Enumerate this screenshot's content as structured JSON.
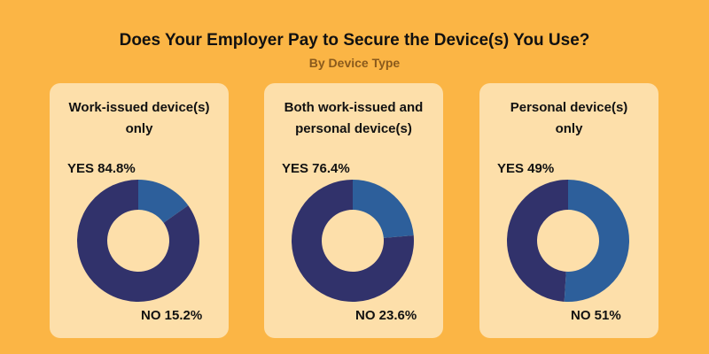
{
  "title": "Does Your Employer Pay to Secure the Device(s) You Use?",
  "subtitle": "By Device Type",
  "colors": {
    "background": "#fbb545",
    "card": "#fddfaa",
    "yes": "#31326b",
    "no": "#2d5f9b"
  },
  "chart_data": [
    {
      "type": "pie",
      "title": "Work-issued device(s) only",
      "categories": [
        "YES",
        "NO"
      ],
      "values": [
        84.8,
        15.2
      ],
      "labels": [
        "YES 84.8%",
        "NO 15.2%"
      ]
    },
    {
      "type": "pie",
      "title": "Both work-issued and personal device(s)",
      "categories": [
        "YES",
        "NO"
      ],
      "values": [
        76.4,
        23.6
      ],
      "labels": [
        "YES 76.4%",
        "NO 23.6%"
      ]
    },
    {
      "type": "pie",
      "title": "Personal device(s) only",
      "categories": [
        "YES",
        "NO"
      ],
      "values": [
        49,
        51
      ],
      "labels": [
        "YES 49%",
        "NO 51%"
      ]
    }
  ],
  "cards": [
    {
      "title_lines": [
        "Work-issued device(s)",
        "only"
      ]
    },
    {
      "title_lines": [
        "Both work-issued and",
        "personal device(s)"
      ]
    },
    {
      "title_lines": [
        "Personal device(s)",
        "only"
      ]
    }
  ]
}
